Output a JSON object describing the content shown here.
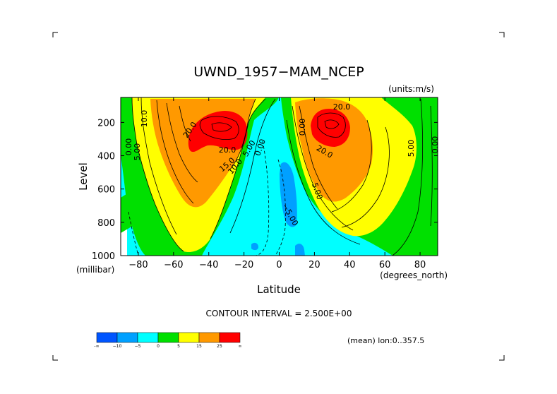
{
  "chart_data": {
    "type": "heatmap",
    "title": "UWND_1957−MAM_NCEP",
    "units_label": "(units:m/s)",
    "xlabel": "Latitude",
    "ylabel": "Level",
    "x_unit_label": "(degrees_north)",
    "y_unit_label": "(millibar)",
    "xlim": [
      -90,
      90
    ],
    "ylim": [
      1000,
      50
    ],
    "x_ticks": [
      -80,
      -60,
      -40,
      -20,
      0,
      20,
      40,
      60,
      80
    ],
    "x_tick_labels": [
      "−80",
      "−60",
      "−40",
      "−20",
      "0",
      "20",
      "40",
      "60",
      "80"
    ],
    "y_ticks": [
      200,
      400,
      600,
      800,
      1000
    ],
    "y_tick_labels": [
      "200",
      "400",
      "600",
      "800",
      "1000"
    ],
    "contour_interval_text": "CONTOUR INTERVAL = 2.500E+00",
    "mean_text": "(mean) lon:0..357.5",
    "contour_labels": [
      "10.0",
      "0.00",
      "5.00",
      "20.0",
      "20.0",
      "15.0",
      "10.0",
      "5.00",
      "0.00",
      "20.0",
      "0.00",
      "20.0",
      "5.00",
      "5.00",
      "0.00",
      "−5.00"
    ],
    "colorbar": {
      "colors": [
        "#0055ff",
        "#00a0ff",
        "#00ffff",
        "#00e000",
        "#ffff00",
        "#ff9900",
        "#ff0000"
      ],
      "labels": [
        "-∞",
        "−10",
        "−5",
        "0",
        "5",
        "15",
        "25",
        "∞"
      ]
    }
  }
}
